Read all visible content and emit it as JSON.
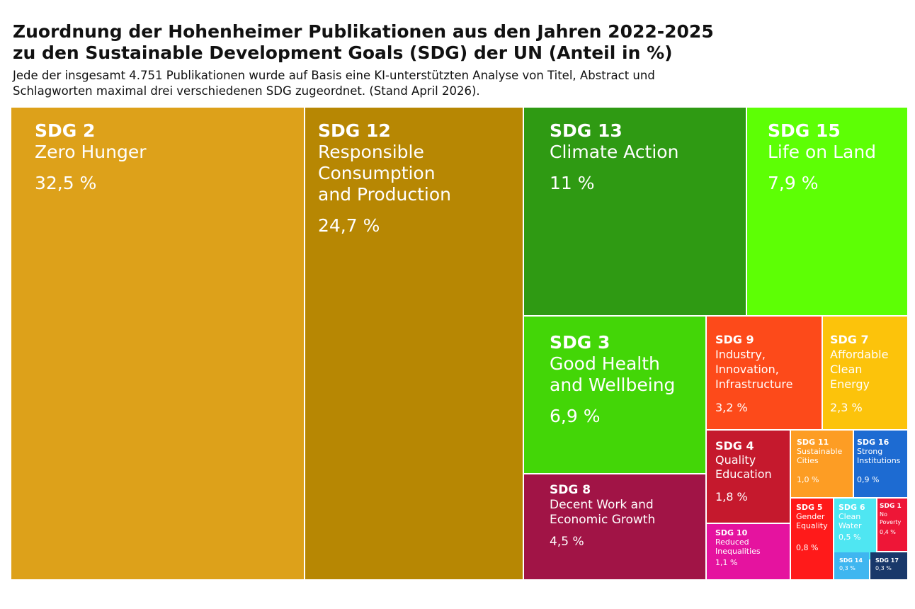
{
  "title_line1": "Zuordnung der Hohenheimer Publikationen aus den Jahren 2022-2025",
  "title_line2": "zu den Sustainable Development Goals (SDG) der UN (Anteil in %)",
  "subtitle_line1": "Jede der insgesamt 4.751 Publikationen wurde auf Basis eine KI-unterstützten Analyse von Titel, Abstract und",
  "subtitle_line2": "Schlagworten maximal drei verschiedenen SDG zugeordnet. (Stand April 2026).",
  "chart_data": {
    "type": "treemap",
    "tiles": [
      {
        "id": "sdg2",
        "code": "SDG 2",
        "name": [
          "Zero Hunger"
        ],
        "label": "32,5 %",
        "value": 32.5,
        "color": "#DDA11A"
      },
      {
        "id": "sdg12",
        "code": "SDG 12",
        "name": [
          "Responsible",
          "Consumption",
          "and Production"
        ],
        "label": "24,7 %",
        "value": 24.7,
        "color": "#B78703"
      },
      {
        "id": "sdg13",
        "code": "SDG 13",
        "name": [
          "Climate Action"
        ],
        "label": "11 %",
        "value": 11.0,
        "color": "#2F9A13"
      },
      {
        "id": "sdg15",
        "code": "SDG 15",
        "name": [
          "Life on Land"
        ],
        "label": "7,9 %",
        "value": 7.9,
        "color": "#5DFF05"
      },
      {
        "id": "sdg3",
        "code": "SDG 3",
        "name": [
          "Good Health",
          "and Wellbeing"
        ],
        "label": "6,9 %",
        "value": 6.9,
        "color": "#43D607"
      },
      {
        "id": "sdg8",
        "code": "SDG 8",
        "name": [
          "Decent Work and",
          "Economic Growth"
        ],
        "label": "4,5 %",
        "value": 4.5,
        "color": "#A11446"
      },
      {
        "id": "sdg9",
        "code": "SDG 9",
        "name": [
          "Industry,",
          "Innovation,",
          "Infrastructure"
        ],
        "label": "3,2 %",
        "value": 3.2,
        "color": "#FD4A1A"
      },
      {
        "id": "sdg7",
        "code": "SDG 7",
        "name": [
          "Affordable",
          "Clean",
          "Energy"
        ],
        "label": "2,3 %",
        "value": 2.3,
        "color": "#FCC30B"
      },
      {
        "id": "sdg4",
        "code": "SDG 4",
        "name": [
          "Quality",
          "Education"
        ],
        "label": "1,8 %",
        "value": 1.8,
        "color": "#C5192D"
      },
      {
        "id": "sdg10",
        "code": "SDG 10",
        "name": [
          "Reduced",
          "Inequalities"
        ],
        "label": "1,1 %",
        "value": 1.1,
        "color": "#E5139F"
      },
      {
        "id": "sdg11",
        "code": "SDG 11",
        "name": [
          "Sustainable",
          "Cities"
        ],
        "label": "1,0 %",
        "value": 1.0,
        "color": "#FD9D24"
      },
      {
        "id": "sdg16",
        "code": "SDG 16",
        "name": [
          "Strong",
          "Institutions"
        ],
        "label": "0,9 %",
        "value": 0.9,
        "color": "#1D6BD2"
      },
      {
        "id": "sdg5",
        "code": "SDG 5",
        "name": [
          "Gender",
          "Equality"
        ],
        "label": "0,8 %",
        "value": 0.8,
        "color": "#FF1A1A"
      },
      {
        "id": "sdg6",
        "code": "SDG 6",
        "name": [
          "Clean",
          "Water"
        ],
        "label": "0,5 %",
        "value": 0.5,
        "color": "#4FE6F2"
      },
      {
        "id": "sdg1",
        "code": "SDG 1",
        "name": [
          "No",
          "Poverty"
        ],
        "label": "0,4 %",
        "value": 0.4,
        "color": "#EE1637"
      },
      {
        "id": "sdg14",
        "code": "SDG 14",
        "name": [],
        "label": "0,3 %",
        "value": 0.3,
        "color": "#3FB6F0"
      },
      {
        "id": "sdg17",
        "code": "SDG 17",
        "name": [],
        "label": "0,3 %",
        "value": 0.3,
        "color": "#19386A"
      }
    ]
  }
}
